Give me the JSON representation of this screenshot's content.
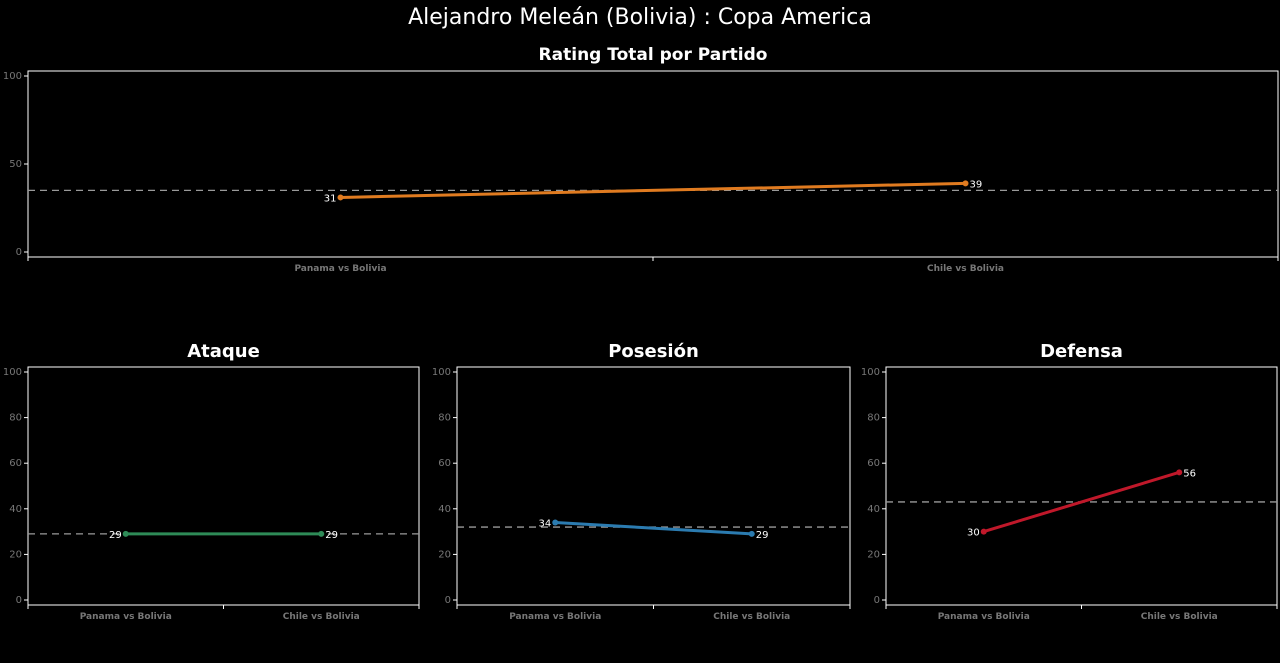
{
  "title": "Alejandro Meleán (Bolivia) :  Copa  America",
  "chart_data": [
    {
      "type": "line",
      "title": "Rating Total por Partido",
      "categories": [
        "Panama vs Bolivia",
        "Chile vs Bolivia"
      ],
      "values": [
        31,
        39
      ],
      "value_labels": [
        "31",
        "39"
      ],
      "average": 35,
      "ylim": [
        0,
        100
      ],
      "yticks": [
        0,
        50,
        100
      ],
      "color": "#e07b20"
    },
    {
      "type": "line",
      "title": "Ataque",
      "categories": [
        "Panama vs Bolivia",
        "Chile vs Bolivia"
      ],
      "values": [
        29,
        29
      ],
      "value_labels": [
        "29",
        "29"
      ],
      "average": 29,
      "ylim": [
        0,
        100
      ],
      "yticks": [
        0,
        20,
        40,
        60,
        80,
        100
      ],
      "color": "#2e8b57"
    },
    {
      "type": "line",
      "title": "Posesión",
      "categories": [
        "Panama vs Bolivia",
        "Chile vs Bolivia"
      ],
      "values": [
        34,
        29
      ],
      "value_labels": [
        "34",
        "29"
      ],
      "average": 32,
      "ylim": [
        0,
        100
      ],
      "yticks": [
        0,
        20,
        40,
        60,
        80,
        100
      ],
      "color": "#2b7bb0"
    },
    {
      "type": "line",
      "title": "Defensa",
      "categories": [
        "Panama vs Bolivia",
        "Chile vs Bolivia"
      ],
      "values": [
        30,
        56
      ],
      "value_labels": [
        "30",
        "56"
      ],
      "average": 43,
      "ylim": [
        0,
        100
      ],
      "yticks": [
        0,
        20,
        40,
        60,
        80,
        100
      ],
      "color": "#c0182a"
    }
  ]
}
